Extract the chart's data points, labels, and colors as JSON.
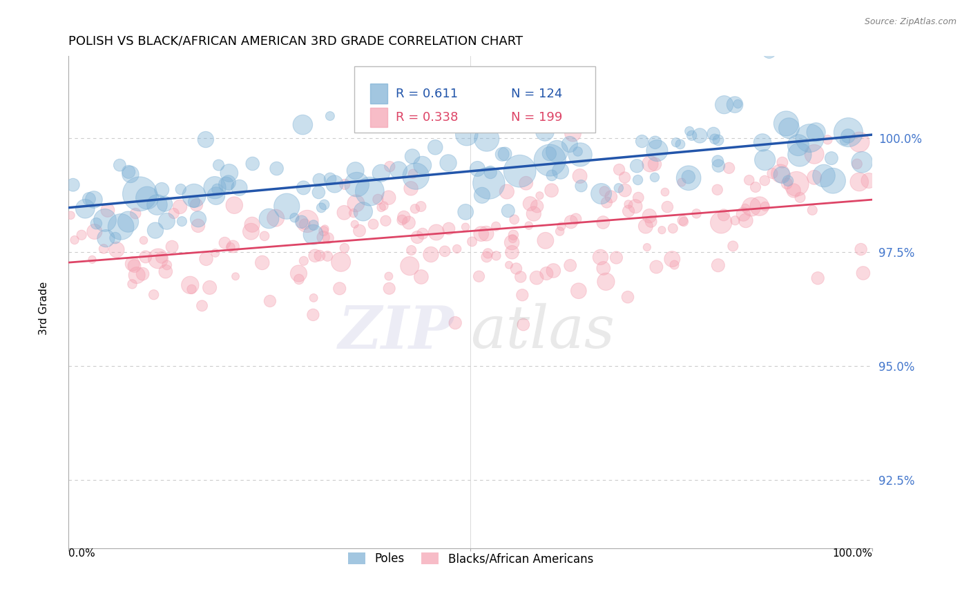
{
  "title": "POLISH VS BLACK/AFRICAN AMERICAN 3RD GRADE CORRELATION CHART",
  "source": "Source: ZipAtlas.com",
  "ylabel": "3rd Grade",
  "xlim": [
    0,
    100
  ],
  "ylim": [
    91.0,
    101.8
  ],
  "yticks": [
    92.5,
    95.0,
    97.5,
    100.0
  ],
  "ytick_labels": [
    "92.5%",
    "95.0%",
    "97.5%",
    "100.0%"
  ],
  "poles_R": 0.611,
  "poles_N": 124,
  "blacks_R": 0.338,
  "blacks_N": 199,
  "blue_color": "#7BAFD4",
  "pink_color": "#F4A0B0",
  "blue_line_color": "#2255AA",
  "pink_line_color": "#DD4466",
  "legend_label_blue": "Poles",
  "legend_label_pink": "Blacks/African Americans",
  "background_color": "#FFFFFF",
  "grid_color": "#CCCCCC",
  "title_fontsize": 13,
  "axis_label_color": "#4477CC"
}
